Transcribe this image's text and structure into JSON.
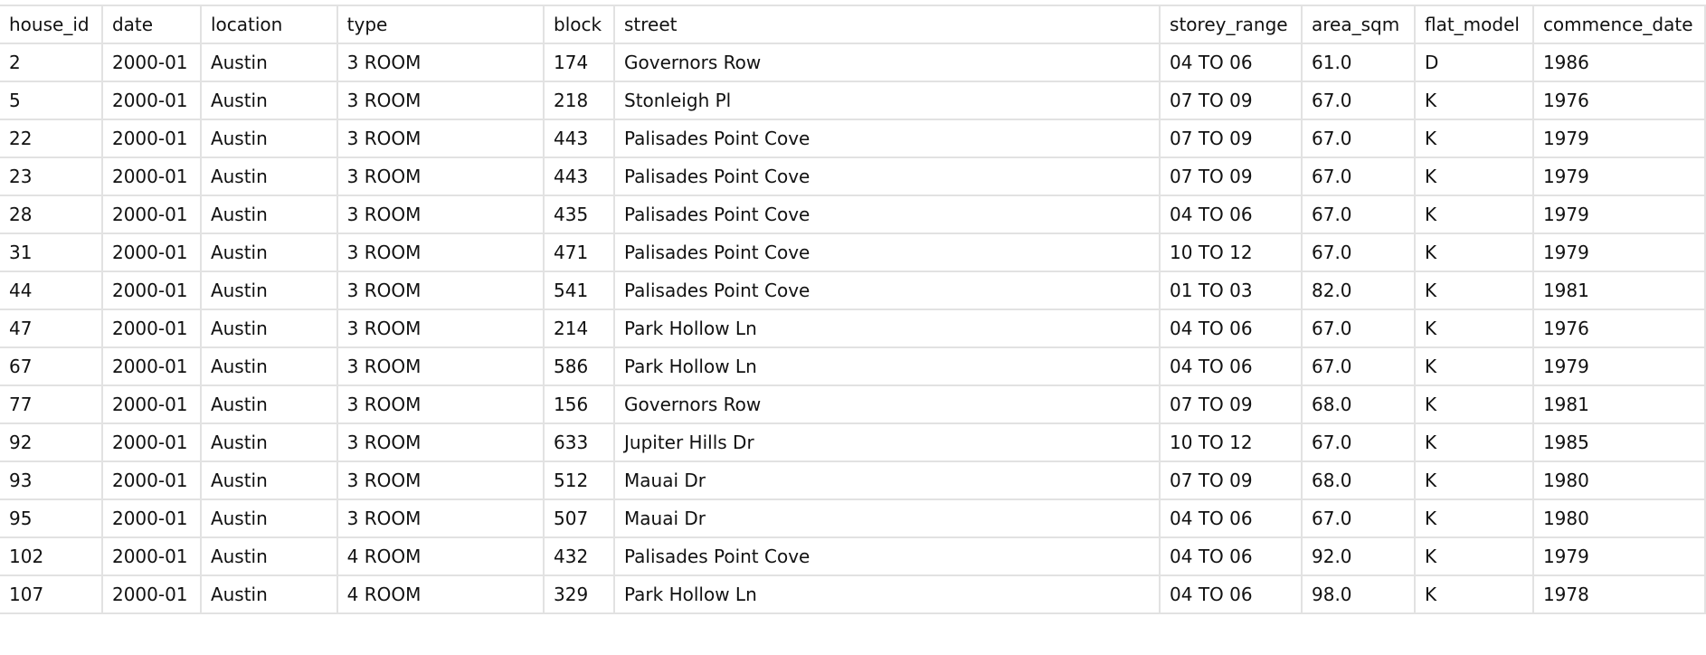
{
  "table": {
    "columns": [
      "house_id",
      "date",
      "location",
      "type",
      "block",
      "street",
      "storey_range",
      "area_sqm",
      "flat_model",
      "commence_date"
    ],
    "rows": [
      [
        "2",
        "2000-01",
        "Austin",
        "3 ROOM",
        "174",
        "Governors Row",
        "04 TO 06",
        "61.0",
        "D",
        "1986"
      ],
      [
        "5",
        "2000-01",
        "Austin",
        "3 ROOM",
        "218",
        "Stonleigh Pl",
        "07 TO 09",
        "67.0",
        "K",
        "1976"
      ],
      [
        "22",
        "2000-01",
        "Austin",
        "3 ROOM",
        "443",
        "Palisades Point Cove",
        "07 TO 09",
        "67.0",
        "K",
        "1979"
      ],
      [
        "23",
        "2000-01",
        "Austin",
        "3 ROOM",
        "443",
        "Palisades Point Cove",
        "07 TO 09",
        "67.0",
        "K",
        "1979"
      ],
      [
        "28",
        "2000-01",
        "Austin",
        "3 ROOM",
        "435",
        "Palisades Point Cove",
        "04 TO 06",
        "67.0",
        "K",
        "1979"
      ],
      [
        "31",
        "2000-01",
        "Austin",
        "3 ROOM",
        "471",
        "Palisades Point Cove",
        "10 TO 12",
        "67.0",
        "K",
        "1979"
      ],
      [
        "44",
        "2000-01",
        "Austin",
        "3 ROOM",
        "541",
        "Palisades Point Cove",
        "01 TO 03",
        "82.0",
        "K",
        "1981"
      ],
      [
        "47",
        "2000-01",
        "Austin",
        "3 ROOM",
        "214",
        "Park Hollow Ln",
        "04 TO 06",
        "67.0",
        "K",
        "1976"
      ],
      [
        "67",
        "2000-01",
        "Austin",
        "3 ROOM",
        "586",
        "Park Hollow Ln",
        "04 TO 06",
        "67.0",
        "K",
        "1979"
      ],
      [
        "77",
        "2000-01",
        "Austin",
        "3 ROOM",
        "156",
        "Governors Row",
        "07 TO 09",
        "68.0",
        "K",
        "1981"
      ],
      [
        "92",
        "2000-01",
        "Austin",
        "3 ROOM",
        "633",
        "Jupiter Hills Dr",
        "10 TO 12",
        "67.0",
        "K",
        "1985"
      ],
      [
        "93",
        "2000-01",
        "Austin",
        "3 ROOM",
        "512",
        "Mauai Dr",
        "07 TO 09",
        "68.0",
        "K",
        "1980"
      ],
      [
        "95",
        "2000-01",
        "Austin",
        "3 ROOM",
        "507",
        "Mauai Dr",
        "04 TO 06",
        "67.0",
        "K",
        "1980"
      ],
      [
        "102",
        "2000-01",
        "Austin",
        "4 ROOM",
        "432",
        "Palisades Point Cove",
        "04 TO 06",
        "92.0",
        "K",
        "1979"
      ],
      [
        "107",
        "2000-01",
        "Austin",
        "4 ROOM",
        "329",
        "Park Hollow Ln",
        "04 TO 06",
        "98.0",
        "K",
        "1978"
      ]
    ]
  }
}
